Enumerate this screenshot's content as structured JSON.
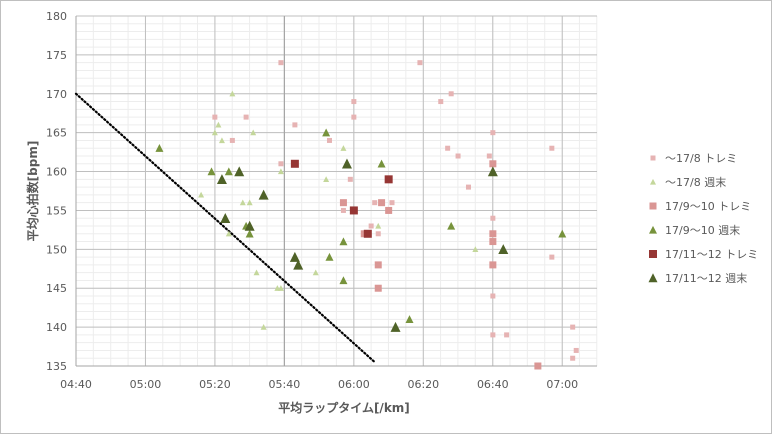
{
  "chart_data": {
    "type": "scatter",
    "title": "",
    "xlabel": "平均ラップタイム[/km]",
    "ylabel": "平均心拍数[bpm]",
    "x_unit": "minutes per km",
    "xlim": [
      4.6667,
      7.1667
    ],
    "ylim": [
      135,
      180
    ],
    "x_ticks": [
      4.6667,
      5.0,
      5.3333,
      5.6667,
      6.0,
      6.3333,
      6.6667,
      7.0
    ],
    "x_tick_labels": [
      "04:40",
      "05:00",
      "05:20",
      "05:40",
      "06:00",
      "06:20",
      "06:40",
      "07:00"
    ],
    "y_ticks": [
      135,
      140,
      145,
      150,
      155,
      160,
      165,
      170,
      175,
      180
    ],
    "minor_x_step": 0.0833,
    "minor_y_step": 1,
    "grid": true,
    "legend_position": "right",
    "reference_line": {
      "style": "dotted",
      "color": "#000000",
      "points": [
        [
          4.6667,
          170
        ],
        [
          6.1,
          135.5
        ]
      ]
    },
    "series": [
      {
        "name": "～17/8 トレミ",
        "marker": "square",
        "size": 5,
        "color": "#e6b3b3",
        "points": [
          [
            5.333,
            167
          ],
          [
            5.417,
            164
          ],
          [
            5.483,
            167
          ],
          [
            5.65,
            174
          ],
          [
            5.65,
            161
          ],
          [
            5.717,
            166
          ],
          [
            5.883,
            164
          ],
          [
            5.95,
            155
          ],
          [
            5.983,
            159
          ],
          [
            6.0,
            169
          ],
          [
            6.0,
            167
          ],
          [
            6.05,
            152
          ],
          [
            6.083,
            153
          ],
          [
            6.1,
            156
          ],
          [
            6.117,
            152
          ],
          [
            6.183,
            156
          ],
          [
            6.317,
            174
          ],
          [
            6.417,
            169
          ],
          [
            6.45,
            163
          ],
          [
            6.467,
            170
          ],
          [
            6.5,
            162
          ],
          [
            6.55,
            158
          ],
          [
            6.65,
            162
          ],
          [
            6.667,
            165
          ],
          [
            6.667,
            154
          ],
          [
            6.667,
            144
          ],
          [
            6.667,
            139
          ],
          [
            6.733,
            139
          ],
          [
            6.95,
            163
          ],
          [
            6.95,
            149
          ],
          [
            7.05,
            140
          ],
          [
            7.05,
            136
          ],
          [
            7.067,
            137
          ]
        ]
      },
      {
        "name": "～17/8 週末",
        "marker": "triangle",
        "size": 5,
        "color": "#c4d79b",
        "points": [
          [
            5.267,
            157
          ],
          [
            5.333,
            165
          ],
          [
            5.35,
            166
          ],
          [
            5.367,
            164
          ],
          [
            5.4,
            152
          ],
          [
            5.417,
            170
          ],
          [
            5.467,
            156
          ],
          [
            5.5,
            156
          ],
          [
            5.517,
            165
          ],
          [
            5.533,
            147
          ],
          [
            5.567,
            140
          ],
          [
            5.633,
            145
          ],
          [
            5.65,
            160
          ],
          [
            5.65,
            145
          ],
          [
            5.817,
            147
          ],
          [
            5.867,
            159
          ],
          [
            5.95,
            163
          ],
          [
            6.117,
            153
          ],
          [
            6.583,
            150
          ]
        ]
      },
      {
        "name": "17/9～10 トレミ",
        "marker": "square",
        "size": 7,
        "color": "#da9694",
        "points": [
          [
            5.95,
            156
          ],
          [
            6.05,
            152
          ],
          [
            6.117,
            148
          ],
          [
            6.117,
            145
          ],
          [
            6.133,
            156
          ],
          [
            6.167,
            155
          ],
          [
            6.667,
            161
          ],
          [
            6.667,
            152
          ],
          [
            6.667,
            151
          ],
          [
            6.667,
            148
          ],
          [
            6.883,
            135
          ]
        ]
      },
      {
        "name": "17/9～10 週末",
        "marker": "triangle",
        "size": 7,
        "color": "#77933c",
        "points": [
          [
            5.067,
            163
          ],
          [
            5.317,
            160
          ],
          [
            5.4,
            160
          ],
          [
            5.45,
            160
          ],
          [
            5.483,
            153
          ],
          [
            5.5,
            152
          ],
          [
            5.867,
            165
          ],
          [
            5.883,
            149
          ],
          [
            5.95,
            151
          ],
          [
            5.95,
            146
          ],
          [
            6.133,
            161
          ],
          [
            6.267,
            141
          ],
          [
            6.467,
            153
          ],
          [
            7.0,
            152
          ]
        ]
      },
      {
        "name": "17/11～12 トレミ",
        "marker": "square",
        "size": 8,
        "color": "#963634",
        "points": [
          [
            5.717,
            161
          ],
          [
            6.0,
            155
          ],
          [
            6.067,
            152
          ],
          [
            6.167,
            159
          ]
        ]
      },
      {
        "name": "17/11～12 週末",
        "marker": "triangle",
        "size": 9,
        "color": "#4f6228",
        "points": [
          [
            5.367,
            159
          ],
          [
            5.383,
            154
          ],
          [
            5.45,
            160
          ],
          [
            5.5,
            153
          ],
          [
            5.567,
            157
          ],
          [
            5.717,
            149
          ],
          [
            5.733,
            148
          ],
          [
            5.967,
            161
          ],
          [
            6.2,
            140
          ],
          [
            6.667,
            160
          ],
          [
            6.717,
            150
          ]
        ]
      }
    ]
  }
}
